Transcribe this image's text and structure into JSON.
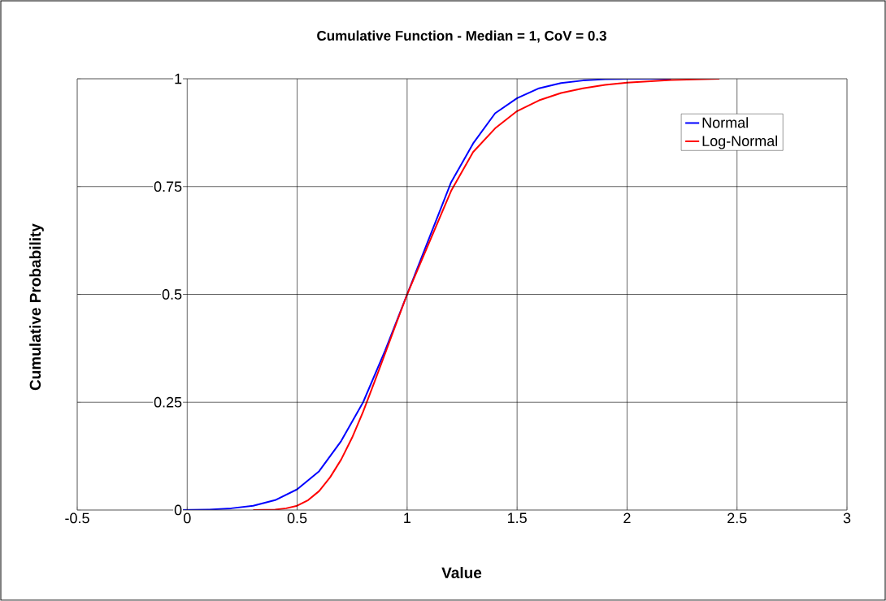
{
  "chart_data": {
    "type": "line",
    "title": "Cumulative Function - Median = 1, CoV = 0.3",
    "xlabel": "Value",
    "ylabel": "Cumulative Probability",
    "series": [
      {
        "name": "Normal",
        "color": "#0000ff",
        "x": [
          -0.05,
          0.1,
          0.2,
          0.3,
          0.4,
          0.5,
          0.6,
          0.7,
          0.8,
          0.9,
          1.0,
          1.1,
          1.2,
          1.3,
          1.4,
          1.5,
          1.6,
          1.7,
          1.8,
          1.9,
          2.0,
          2.2
        ],
        "values": [
          0,
          0.001,
          0.004,
          0.01,
          0.023,
          0.048,
          0.09,
          0.16,
          0.25,
          0.37,
          0.5,
          0.63,
          0.76,
          0.85,
          0.92,
          0.955,
          0.978,
          0.99,
          0.996,
          0.999,
          1,
          1
        ]
      },
      {
        "name": "Log-Normal",
        "color": "#ff0000",
        "x": [
          0.3,
          0.4,
          0.45,
          0.5,
          0.55,
          0.6,
          0.65,
          0.7,
          0.75,
          0.8,
          0.85,
          0.9,
          0.95,
          1.0,
          1.1,
          1.2,
          1.3,
          1.4,
          1.5,
          1.6,
          1.7,
          1.8,
          1.9,
          2.0,
          2.2,
          2.42
        ],
        "values": [
          0,
          0.001,
          0.004,
          0.01,
          0.023,
          0.044,
          0.076,
          0.117,
          0.168,
          0.228,
          0.295,
          0.363,
          0.432,
          0.5,
          0.62,
          0.74,
          0.83,
          0.885,
          0.925,
          0.95,
          0.967,
          0.978,
          0.986,
          0.991,
          0.997,
          1
        ]
      }
    ],
    "xlim": [
      -0.5,
      3
    ],
    "ylim": [
      0,
      1
    ],
    "xticks": [
      -0.5,
      0,
      0.5,
      1,
      1.5,
      2,
      2.5,
      3
    ],
    "yticks": [
      0,
      0.25,
      0.5,
      0.75,
      1
    ],
    "grid": true,
    "legend": "top right",
    "marker": "none",
    "line_style": "solid"
  }
}
